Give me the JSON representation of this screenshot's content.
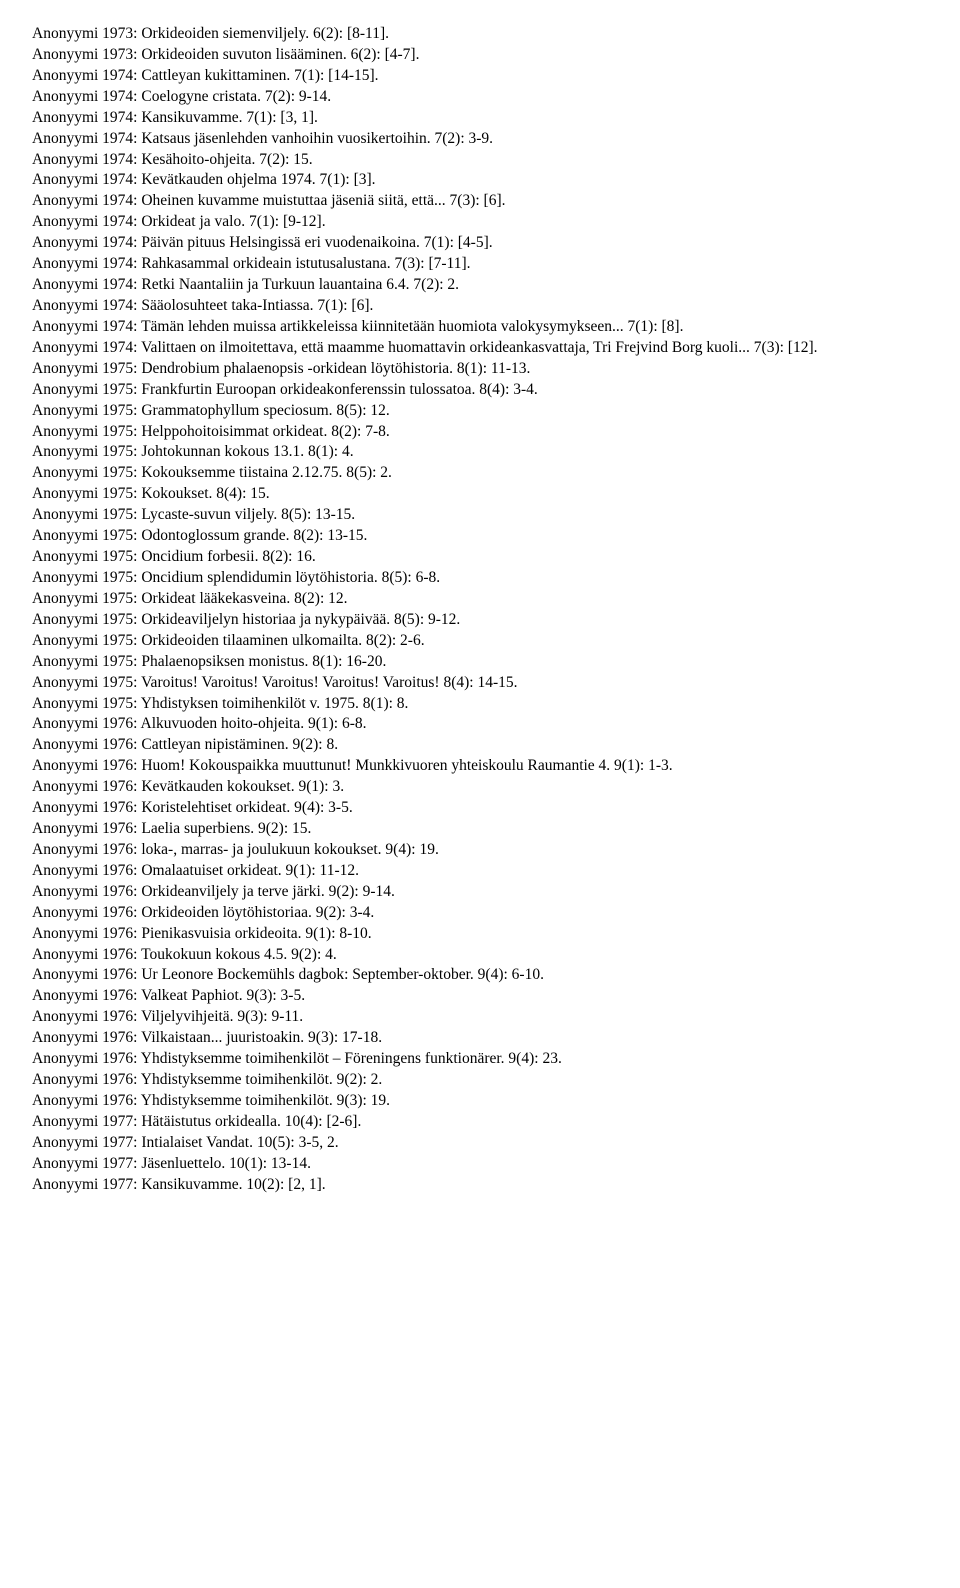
{
  "entries": [
    "Anonyymi 1973: Orkideoiden siemenviljely. 6(2): [8-11].",
    "Anonyymi 1973: Orkideoiden suvuton lisääminen. 6(2): [4-7].",
    "Anonyymi 1974: Cattleyan kukittaminen. 7(1): [14-15].",
    "Anonyymi 1974: Coelogyne cristata. 7(2): 9-14.",
    "Anonyymi 1974: Kansikuvamme. 7(1): [3, 1].",
    "Anonyymi 1974: Katsaus jäsenlehden vanhoihin vuosikertoihin. 7(2): 3-9.",
    "Anonyymi 1974: Kesähoito-ohjeita. 7(2): 15.",
    "Anonyymi 1974: Kevätkauden ohjelma 1974. 7(1): [3].",
    "Anonyymi 1974: Oheinen kuvamme muistuttaa jäseniä siitä, että... 7(3): [6].",
    "Anonyymi 1974: Orkideat ja valo. 7(1): [9-12].",
    "Anonyymi 1974: Päivän pituus Helsingissä eri vuodenaikoina. 7(1): [4-5].",
    "Anonyymi 1974: Rahkasammal orkideain istutusalustana. 7(3): [7-11].",
    "Anonyymi 1974: Retki Naantaliin ja Turkuun lauantaina 6.4. 7(2): 2.",
    "Anonyymi 1974: Sääolosuhteet taka-Intiassa. 7(1): [6].",
    "Anonyymi 1974: Tämän lehden muissa artikkeleissa kiinnitetään huomiota valokysymykseen... 7(1): [8].",
    "Anonyymi 1974: Valittaen on ilmoitettava, että maamme huomattavin orkideankasvattaja, Tri Frejvind Borg kuoli... 7(3): [12].",
    "Anonyymi 1975: Dendrobium phalaenopsis -orkidean löytöhistoria. 8(1): 11-13.",
    "Anonyymi 1975: Frankfurtin Euroopan orkideakonferenssin tulossatoa. 8(4): 3-4.",
    "Anonyymi 1975: Grammatophyllum speciosum. 8(5): 12.",
    "Anonyymi 1975: Helppohoitoisimmat orkideat. 8(2): 7-8.",
    "Anonyymi 1975: Johtokunnan kokous 13.1. 8(1): 4.",
    "Anonyymi 1975: Kokouksemme tiistaina 2.12.75. 8(5): 2.",
    "Anonyymi 1975: Kokoukset. 8(4): 15.",
    "Anonyymi 1975: Lycaste-suvun viljely. 8(5): 13-15.",
    "Anonyymi 1975: Odontoglossum grande. 8(2): 13-15.",
    "Anonyymi 1975: Oncidium forbesii. 8(2): 16.",
    "Anonyymi 1975: Oncidium splendidumin löytöhistoria. 8(5): 6-8.",
    "Anonyymi 1975: Orkideat lääkekasveina. 8(2): 12.",
    "Anonyymi 1975: Orkideaviljelyn historiaa ja nykypäivää. 8(5): 9-12.",
    "Anonyymi 1975: Orkideoiden tilaaminen ulkomailta. 8(2): 2-6.",
    "Anonyymi 1975: Phalaenopsiksen monistus. 8(1): 16-20.",
    "Anonyymi 1975: Varoitus! Varoitus! Varoitus! Varoitus! Varoitus! 8(4): 14-15.",
    "Anonyymi 1975: Yhdistyksen toimihenkilöt v. 1975. 8(1): 8.",
    "Anonyymi 1976: Alkuvuoden hoito-ohjeita. 9(1): 6-8.",
    "Anonyymi 1976: Cattleyan nipistäminen. 9(2): 8.",
    "Anonyymi 1976: Huom! Kokouspaikka muuttunut! Munkkivuoren yhteiskoulu Raumantie 4. 9(1): 1-3.",
    "Anonyymi 1976: Kevätkauden kokoukset. 9(1): 3.",
    "Anonyymi 1976: Koristelehtiset orkideat. 9(4): 3-5.",
    "Anonyymi 1976: Laelia superbiens. 9(2): 15.",
    "Anonyymi 1976: loka-, marras- ja joulukuun kokoukset. 9(4): 19.",
    "Anonyymi 1976: Omalaatuiset orkideat. 9(1): 11-12.",
    "Anonyymi 1976: Orkideanviljely ja terve järki. 9(2): 9-14.",
    "Anonyymi 1976: Orkideoiden löytöhistoriaa. 9(2): 3-4.",
    "Anonyymi 1976: Pienikasvuisia orkideoita. 9(1): 8-10.",
    "Anonyymi 1976: Toukokuun kokous 4.5. 9(2): 4.",
    "Anonyymi 1976: Ur Leonore Bockemühls dagbok: September-oktober. 9(4): 6-10.",
    "Anonyymi 1976: Valkeat Paphiot. 9(3): 3-5.",
    "Anonyymi 1976: Viljelyvihjeitä. 9(3): 9-11.",
    "Anonyymi 1976: Vilkaistaan... juuristoakin. 9(3): 17-18.",
    "Anonyymi 1976: Yhdistyksemme toimihenkilöt – Föreningens funktionärer. 9(4): 23.",
    "Anonyymi 1976: Yhdistyksemme toimihenkilöt. 9(2): 2.",
    "Anonyymi 1976: Yhdistyksemme toimihenkilöt. 9(3): 19.",
    "Anonyymi 1977: Hätäistutus orkidealla. 10(4): [2-6].",
    "Anonyymi 1977: Intialaiset Vandat. 10(5): 3-5, 2.",
    "Anonyymi 1977: Jäsenluettelo. 10(1): 13-14.",
    "Anonyymi 1977: Kansikuvamme. 10(2): [2, 1]."
  ]
}
